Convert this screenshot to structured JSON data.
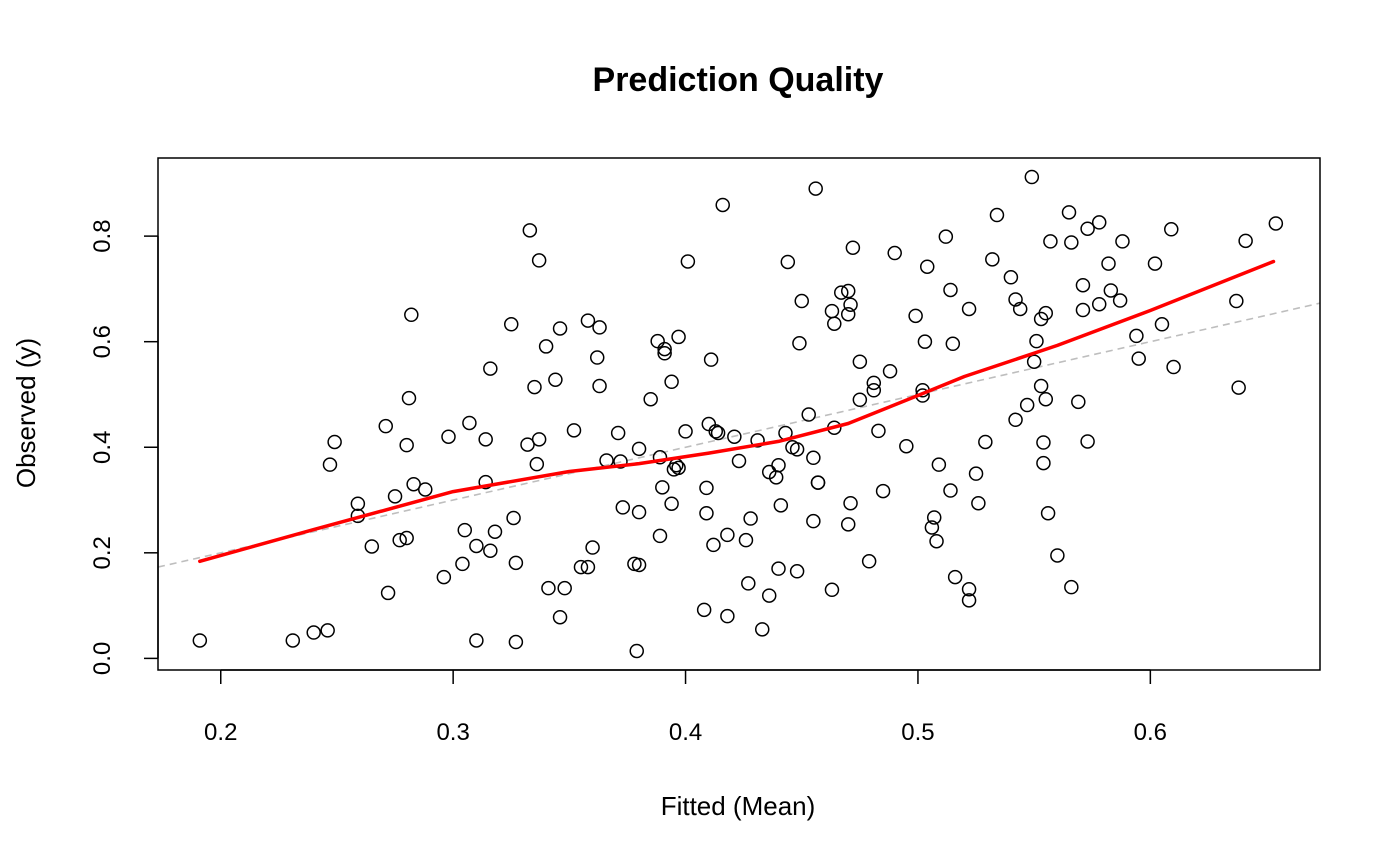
{
  "chart_data": {
    "type": "scatter",
    "title": "Prediction Quality",
    "xlabel": "Fitted (Mean)",
    "ylabel": "Observed (y)",
    "xlim": [
      0.173,
      0.673
    ],
    "ylim": [
      -0.022,
      0.948
    ],
    "grid": false,
    "x_ticks": [
      0.2,
      0.3,
      0.4,
      0.5,
      0.6
    ],
    "x_tick_labels": [
      "0.2",
      "0.3",
      "0.4",
      "0.5",
      "0.6"
    ],
    "y_ticks": [
      0.0,
      0.2,
      0.4,
      0.6,
      0.8
    ],
    "y_tick_labels": [
      "0.0",
      "0.2",
      "0.4",
      "0.6",
      "0.8"
    ],
    "colors": {
      "points": "#000000",
      "smooth": "#ff0000",
      "reference": "#bebebe"
    },
    "reference_line": {
      "intercept": 0,
      "slope": 1,
      "style": "dashed"
    },
    "smooth_line": [
      [
        0.191,
        0.184
      ],
      [
        0.24,
        0.244
      ],
      [
        0.3,
        0.316
      ],
      [
        0.35,
        0.354
      ],
      [
        0.38,
        0.369
      ],
      [
        0.41,
        0.389
      ],
      [
        0.44,
        0.411
      ],
      [
        0.47,
        0.445
      ],
      [
        0.5,
        0.498
      ],
      [
        0.52,
        0.534
      ],
      [
        0.56,
        0.593
      ],
      [
        0.6,
        0.659
      ],
      [
        0.653,
        0.752
      ]
    ],
    "points": [
      [
        0.191,
        0.034
      ],
      [
        0.231,
        0.034
      ],
      [
        0.24,
        0.049
      ],
      [
        0.246,
        0.053
      ],
      [
        0.247,
        0.367
      ],
      [
        0.249,
        0.41
      ],
      [
        0.259,
        0.293
      ],
      [
        0.259,
        0.27
      ],
      [
        0.265,
        0.212
      ],
      [
        0.271,
        0.44
      ],
      [
        0.272,
        0.124
      ],
      [
        0.275,
        0.307
      ],
      [
        0.277,
        0.224
      ],
      [
        0.28,
        0.228
      ],
      [
        0.281,
        0.493
      ],
      [
        0.28,
        0.404
      ],
      [
        0.282,
        0.651
      ],
      [
        0.283,
        0.33
      ],
      [
        0.288,
        0.32
      ],
      [
        0.296,
        0.154
      ],
      [
        0.298,
        0.42
      ],
      [
        0.304,
        0.179
      ],
      [
        0.305,
        0.243
      ],
      [
        0.307,
        0.446
      ],
      [
        0.31,
        0.213
      ],
      [
        0.31,
        0.034
      ],
      [
        0.314,
        0.415
      ],
      [
        0.314,
        0.334
      ],
      [
        0.316,
        0.204
      ],
      [
        0.316,
        0.549
      ],
      [
        0.318,
        0.24
      ],
      [
        0.325,
        0.633
      ],
      [
        0.326,
        0.266
      ],
      [
        0.327,
        0.181
      ],
      [
        0.327,
        0.031
      ],
      [
        0.332,
        0.405
      ],
      [
        0.333,
        0.811
      ],
      [
        0.335,
        0.514
      ],
      [
        0.336,
        0.368
      ],
      [
        0.337,
        0.754
      ],
      [
        0.337,
        0.415
      ],
      [
        0.34,
        0.591
      ],
      [
        0.341,
        0.133
      ],
      [
        0.344,
        0.528
      ],
      [
        0.346,
        0.625
      ],
      [
        0.346,
        0.078
      ],
      [
        0.348,
        0.133
      ],
      [
        0.352,
        0.432
      ],
      [
        0.355,
        0.173
      ],
      [
        0.358,
        0.173
      ],
      [
        0.358,
        0.64
      ],
      [
        0.36,
        0.21
      ],
      [
        0.362,
        0.57
      ],
      [
        0.363,
        0.627
      ],
      [
        0.363,
        0.516
      ],
      [
        0.366,
        0.375
      ],
      [
        0.371,
        0.427
      ],
      [
        0.372,
        0.373
      ],
      [
        0.373,
        0.286
      ],
      [
        0.378,
        0.179
      ],
      [
        0.38,
        0.177
      ],
      [
        0.38,
        0.277
      ],
      [
        0.38,
        0.397
      ],
      [
        0.379,
        0.014
      ],
      [
        0.385,
        0.491
      ],
      [
        0.388,
        0.601
      ],
      [
        0.389,
        0.381
      ],
      [
        0.389,
        0.232
      ],
      [
        0.39,
        0.324
      ],
      [
        0.391,
        0.586
      ],
      [
        0.391,
        0.578
      ],
      [
        0.394,
        0.524
      ],
      [
        0.394,
        0.293
      ],
      [
        0.395,
        0.358
      ],
      [
        0.397,
        0.609
      ],
      [
        0.396,
        0.366
      ],
      [
        0.397,
        0.361
      ],
      [
        0.4,
        0.43
      ],
      [
        0.401,
        0.752
      ],
      [
        0.408,
        0.092
      ],
      [
        0.409,
        0.323
      ],
      [
        0.41,
        0.444
      ],
      [
        0.411,
        0.566
      ],
      [
        0.409,
        0.275
      ],
      [
        0.412,
        0.215
      ],
      [
        0.413,
        0.43
      ],
      [
        0.414,
        0.427
      ],
      [
        0.416,
        0.859
      ],
      [
        0.418,
        0.08
      ],
      [
        0.418,
        0.234
      ],
      [
        0.421,
        0.42
      ],
      [
        0.423,
        0.374
      ],
      [
        0.426,
        0.224
      ],
      [
        0.427,
        0.142
      ],
      [
        0.428,
        0.265
      ],
      [
        0.431,
        0.413
      ],
      [
        0.433,
        0.055
      ],
      [
        0.436,
        0.119
      ],
      [
        0.436,
        0.353
      ],
      [
        0.439,
        0.343
      ],
      [
        0.44,
        0.366
      ],
      [
        0.44,
        0.17
      ],
      [
        0.441,
        0.29
      ],
      [
        0.443,
        0.427
      ],
      [
        0.444,
        0.751
      ],
      [
        0.446,
        0.4
      ],
      [
        0.448,
        0.165
      ],
      [
        0.448,
        0.396
      ],
      [
        0.449,
        0.597
      ],
      [
        0.45,
        0.677
      ],
      [
        0.453,
        0.462
      ],
      [
        0.455,
        0.26
      ],
      [
        0.455,
        0.38
      ],
      [
        0.456,
        0.89
      ],
      [
        0.457,
        0.333
      ],
      [
        0.457,
        0.333
      ],
      [
        0.463,
        0.658
      ],
      [
        0.463,
        0.13
      ],
      [
        0.464,
        0.437
      ],
      [
        0.464,
        0.634
      ],
      [
        0.467,
        0.693
      ],
      [
        0.47,
        0.696
      ],
      [
        0.47,
        0.254
      ],
      [
        0.47,
        0.652
      ],
      [
        0.471,
        0.67
      ],
      [
        0.471,
        0.294
      ],
      [
        0.472,
        0.778
      ],
      [
        0.475,
        0.49
      ],
      [
        0.475,
        0.562
      ],
      [
        0.479,
        0.184
      ],
      [
        0.481,
        0.522
      ],
      [
        0.481,
        0.508
      ],
      [
        0.483,
        0.431
      ],
      [
        0.485,
        0.317
      ],
      [
        0.488,
        0.544
      ],
      [
        0.49,
        0.768
      ],
      [
        0.495,
        0.402
      ],
      [
        0.499,
        0.649
      ],
      [
        0.502,
        0.508
      ],
      [
        0.502,
        0.498
      ],
      [
        0.503,
        0.6
      ],
      [
        0.504,
        0.742
      ],
      [
        0.506,
        0.248
      ],
      [
        0.507,
        0.267
      ],
      [
        0.508,
        0.222
      ],
      [
        0.509,
        0.367
      ],
      [
        0.512,
        0.799
      ],
      [
        0.514,
        0.318
      ],
      [
        0.514,
        0.698
      ],
      [
        0.515,
        0.596
      ],
      [
        0.516,
        0.154
      ],
      [
        0.522,
        0.131
      ],
      [
        0.522,
        0.662
      ],
      [
        0.522,
        0.11
      ],
      [
        0.525,
        0.35
      ],
      [
        0.526,
        0.294
      ],
      [
        0.529,
        0.41
      ],
      [
        0.532,
        0.756
      ],
      [
        0.534,
        0.84
      ],
      [
        0.54,
        0.722
      ],
      [
        0.542,
        0.68
      ],
      [
        0.542,
        0.452
      ],
      [
        0.544,
        0.662
      ],
      [
        0.547,
        0.48
      ],
      [
        0.549,
        0.912
      ],
      [
        0.55,
        0.562
      ],
      [
        0.551,
        0.601
      ],
      [
        0.553,
        0.643
      ],
      [
        0.553,
        0.516
      ],
      [
        0.554,
        0.409
      ],
      [
        0.554,
        0.37
      ],
      [
        0.555,
        0.491
      ],
      [
        0.555,
        0.654
      ],
      [
        0.556,
        0.275
      ],
      [
        0.557,
        0.79
      ],
      [
        0.56,
        0.195
      ],
      [
        0.565,
        0.845
      ],
      [
        0.566,
        0.788
      ],
      [
        0.566,
        0.135
      ],
      [
        0.569,
        0.486
      ],
      [
        0.571,
        0.707
      ],
      [
        0.571,
        0.66
      ],
      [
        0.573,
        0.411
      ],
      [
        0.573,
        0.814
      ],
      [
        0.578,
        0.826
      ],
      [
        0.578,
        0.671
      ],
      [
        0.582,
        0.748
      ],
      [
        0.583,
        0.697
      ],
      [
        0.587,
        0.678
      ],
      [
        0.588,
        0.79
      ],
      [
        0.594,
        0.611
      ],
      [
        0.595,
        0.568
      ],
      [
        0.602,
        0.748
      ],
      [
        0.605,
        0.633
      ],
      [
        0.609,
        0.813
      ],
      [
        0.61,
        0.552
      ],
      [
        0.637,
        0.677
      ],
      [
        0.638,
        0.513
      ],
      [
        0.641,
        0.791
      ],
      [
        0.654,
        0.824
      ]
    ]
  }
}
